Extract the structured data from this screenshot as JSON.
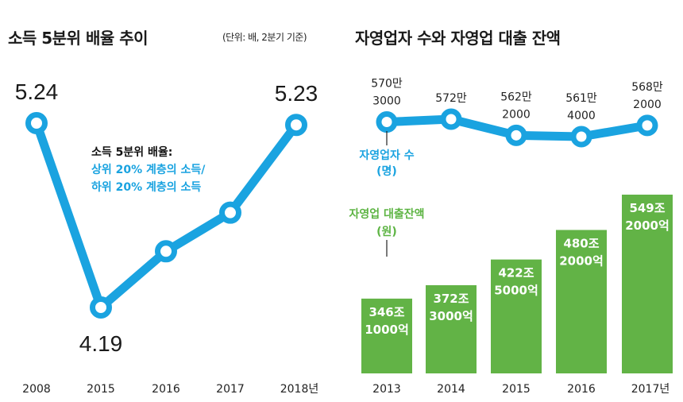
{
  "left_panel": {
    "title": "소득 5분위 배율 추이",
    "unit_note": "(단위: 배, 2분기 기준)",
    "annotation": {
      "line1": "소득 5분위 배율:",
      "line2": "상위 20% 계층의 소득/",
      "line3": "하위 20% 계층의 소득"
    }
  },
  "right_panel": {
    "title": "자영업자 수와 자영업 대출 잔액",
    "line_legend": {
      "line1": "자영업자 수",
      "line2": "(명)"
    },
    "bar_legend": {
      "line1": "자영업 대출잔액",
      "line2": "(원)"
    }
  },
  "colors": {
    "line": "#1aa3e0",
    "bar": "#62b346",
    "text": "#1a1a1a"
  },
  "chart_data": [
    {
      "type": "line",
      "title": "소득 5분위 배율 추이",
      "subtitle": "(단위: 배, 2분기 기준)",
      "categories": [
        "2008",
        "2015",
        "2016",
        "2017",
        "2018년"
      ],
      "series": [
        {
          "name": "소득 5분위 배율",
          "values": [
            5.24,
            4.19,
            4.51,
            4.73,
            5.23
          ]
        }
      ],
      "data_labels": [
        "5.24",
        "4.19",
        null,
        null,
        "5.23"
      ],
      "xlabel": "",
      "ylabel": "배",
      "ylim": [
        4.0,
        5.4
      ],
      "grid": false
    },
    {
      "type": "line",
      "title": "자영업자 수",
      "categories": [
        "2013",
        "2014",
        "2015",
        "2016",
        "2017년"
      ],
      "series": [
        {
          "name": "자영업자 수 (명)",
          "values": [
            5703000,
            5720000,
            5622000,
            5614000,
            5682000
          ]
        }
      ],
      "data_labels": [
        [
          "570만",
          "3000"
        ],
        [
          "572만"
        ],
        [
          "562만",
          "2000"
        ],
        [
          "561만",
          "4000"
        ],
        [
          "568만",
          "2000"
        ]
      ],
      "ylim": [
        5500000,
        5800000
      ],
      "grid": false
    },
    {
      "type": "bar",
      "title": "자영업 대출잔액",
      "categories": [
        "2013",
        "2014",
        "2015",
        "2016",
        "2017년"
      ],
      "series": [
        {
          "name": "자영업 대출잔액 (원)",
          "values": [
            346.1,
            372.3,
            422.5,
            480.2,
            549.2
          ],
          "unit": "조원"
        }
      ],
      "data_labels": [
        [
          "346조",
          "1000억"
        ],
        [
          "372조",
          "3000억"
        ],
        [
          "422조",
          "5000억"
        ],
        [
          "480조",
          "2000억"
        ],
        [
          "549조",
          "2000억"
        ]
      ],
      "ylim": [
        0,
        600
      ],
      "grid": false
    }
  ]
}
